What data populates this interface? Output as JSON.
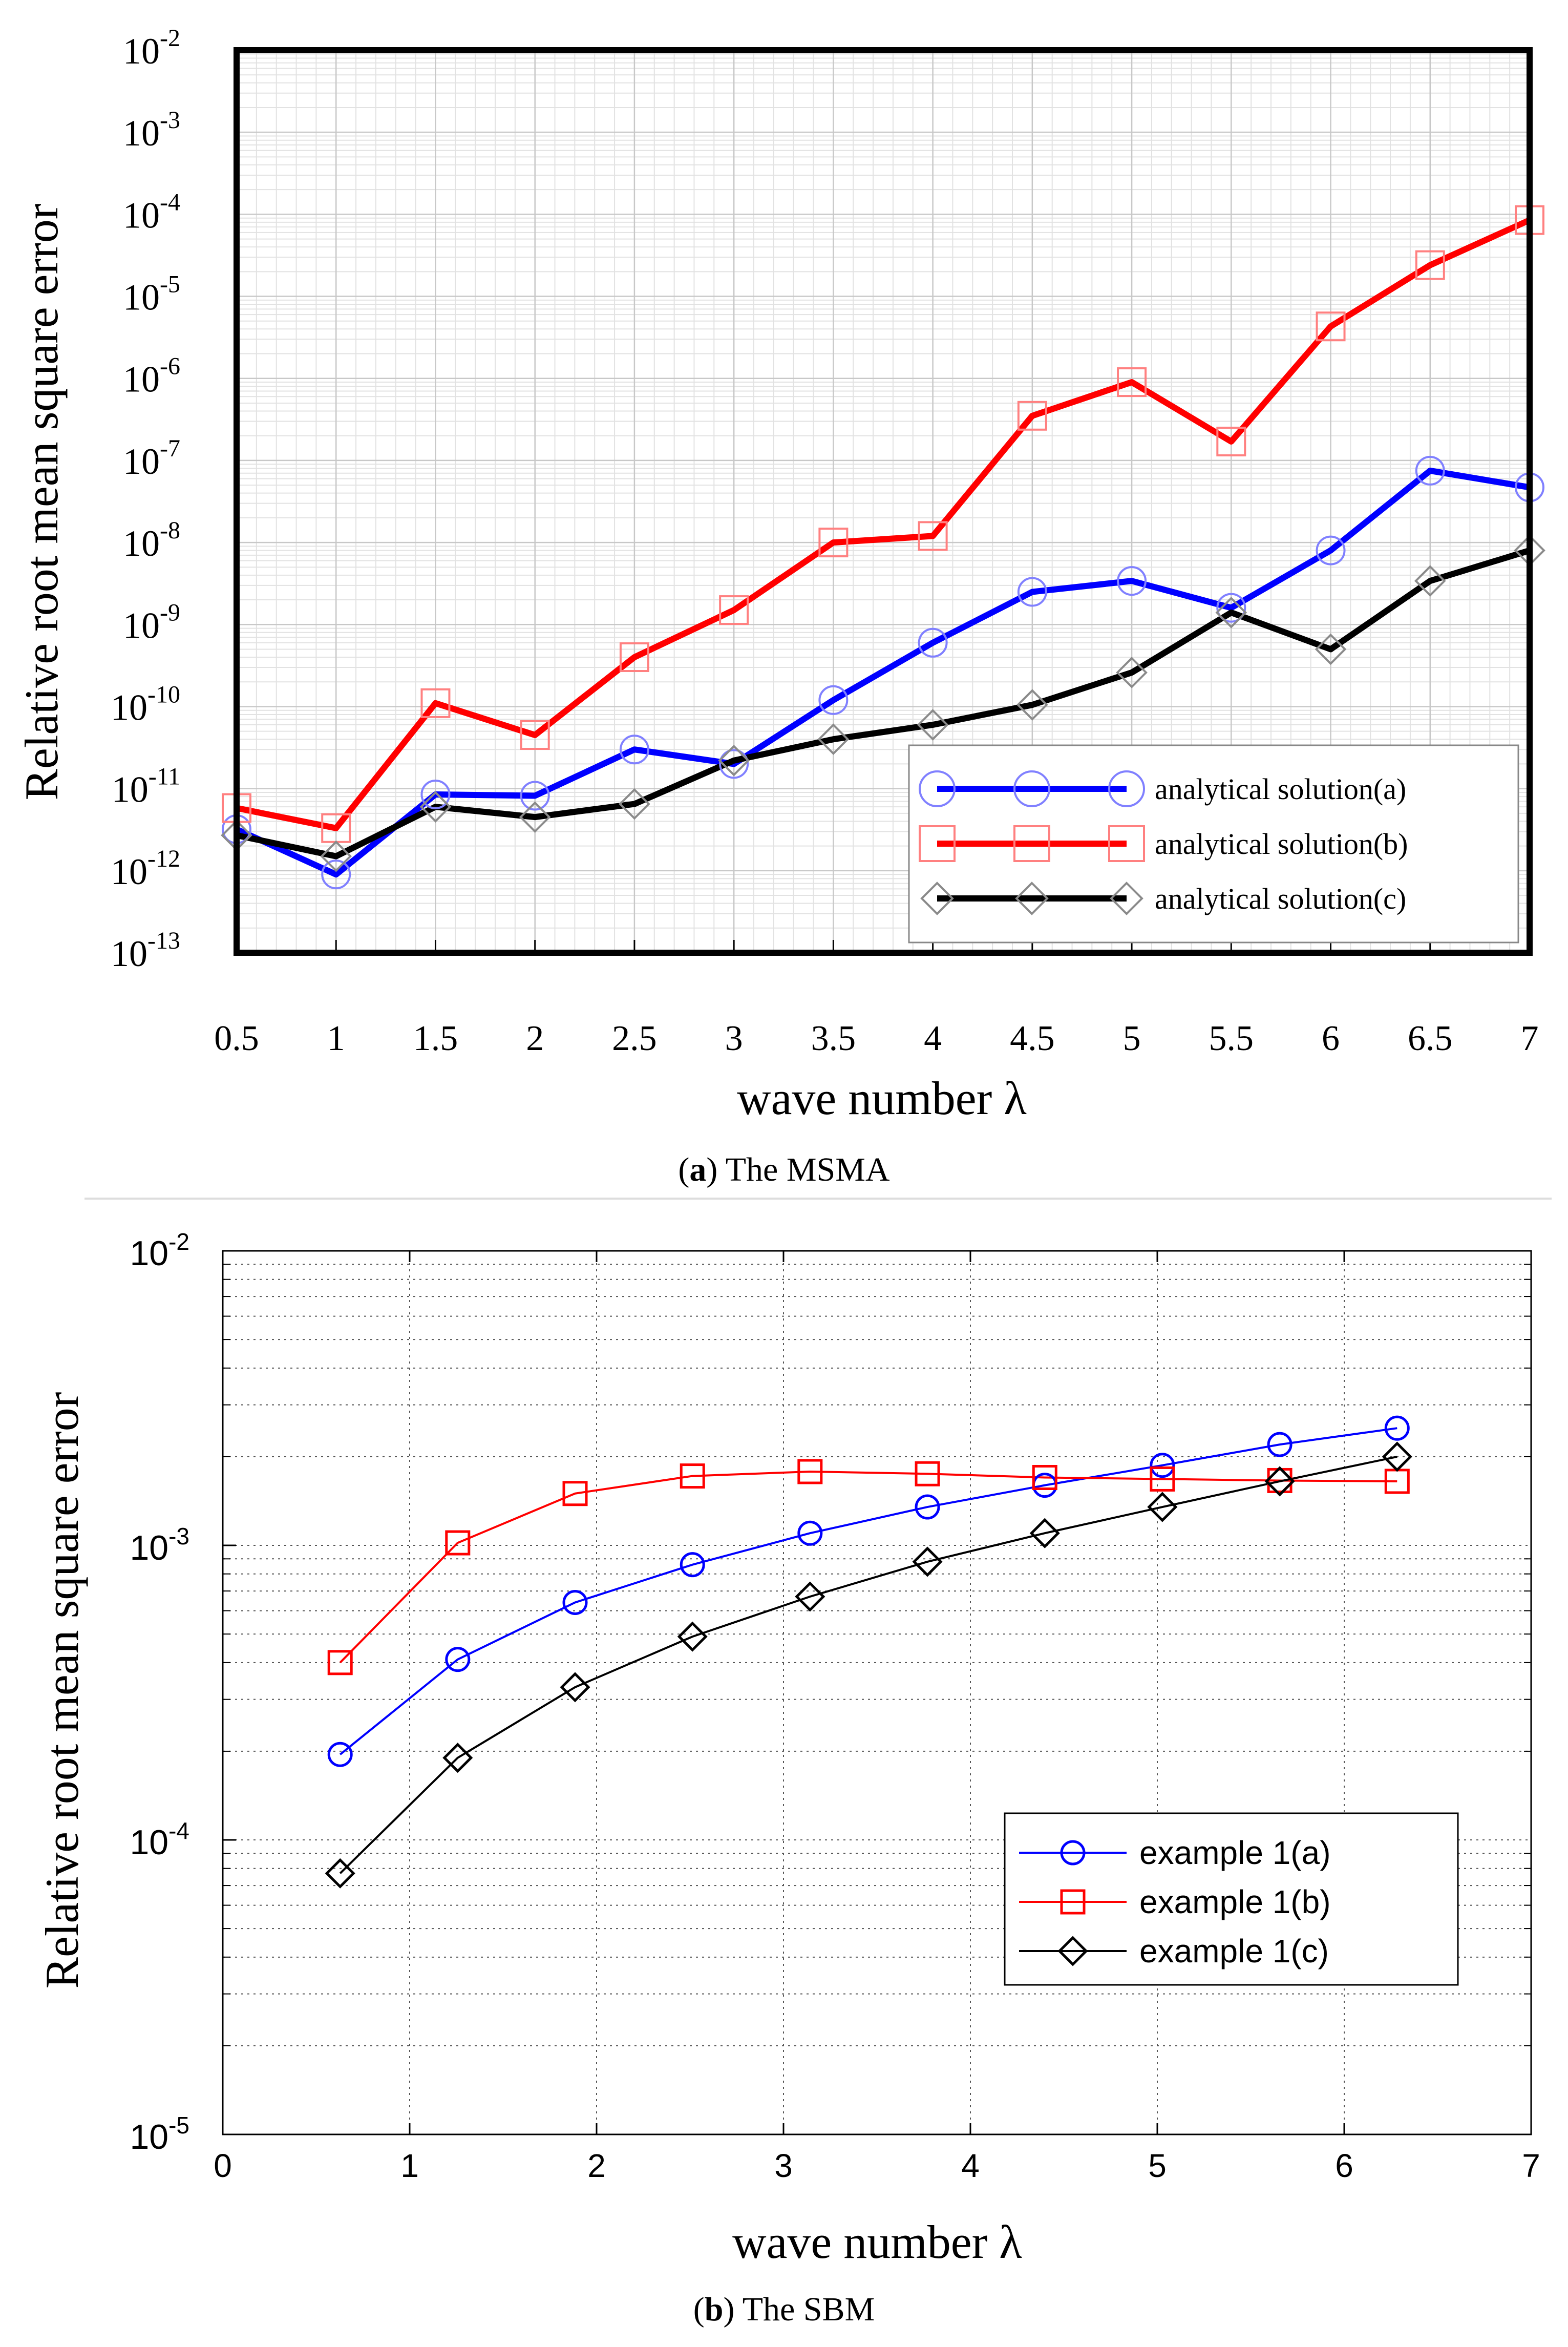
{
  "chart_data": [
    {
      "type": "line",
      "caption_label": "a",
      "caption_text": "The MSMA",
      "xlabel": "wave number λ",
      "ylabel": "Relative root mean square error",
      "yscale": "log",
      "xlim": [
        0.5,
        7
      ],
      "ylim": [
        1e-13,
        0.01
      ],
      "grid": true,
      "legend_position": "bottom-right",
      "x_ticks": [
        "0.5",
        "1",
        "1.5",
        "2",
        "2.5",
        "3",
        "3.5",
        "4",
        "4.5",
        "5",
        "5.5",
        "6",
        "6.5",
        "7"
      ],
      "y_ticks": [
        {
          "base": "10",
          "exp": "-2",
          "value": 0.01
        },
        {
          "base": "10",
          "exp": "-3",
          "value": 0.001
        },
        {
          "base": "10",
          "exp": "-4",
          "value": 0.0001
        },
        {
          "base": "10",
          "exp": "-5",
          "value": 1e-05
        },
        {
          "base": "10",
          "exp": "-6",
          "value": 1e-06
        },
        {
          "base": "10",
          "exp": "-7",
          "value": 1e-07
        },
        {
          "base": "10",
          "exp": "-8",
          "value": 1e-08
        },
        {
          "base": "10",
          "exp": "-9",
          "value": 1e-09
        },
        {
          "base": "10",
          "exp": "-10",
          "value": 1e-10
        },
        {
          "base": "10",
          "exp": "-11",
          "value": 1e-11
        },
        {
          "base": "10",
          "exp": "-12",
          "value": 1e-12
        },
        {
          "base": "10",
          "exp": "-13",
          "value": 1e-13
        }
      ],
      "x": [
        0.5,
        1,
        1.5,
        2,
        2.5,
        3,
        3.5,
        4,
        4.5,
        5,
        5.5,
        6,
        6.5,
        7
      ],
      "series": [
        {
          "name": "analytical solution(a)",
          "color": "#0000ff",
          "marker": "circle",
          "values": [
            3.2e-12,
            9e-13,
            8.5e-12,
            8.2e-12,
            3e-11,
            2e-11,
            1.2e-10,
            6e-10,
            2.5e-09,
            3.4e-09,
            1.6e-09,
            8e-09,
            7.5e-08,
            4.7e-08
          ]
        },
        {
          "name": "analytical solution(b)",
          "color": "#ff0000",
          "marker": "square",
          "values": [
            5.8e-12,
            3.3e-12,
            1.1e-10,
            4.5e-11,
            4e-10,
            1.5e-09,
            1e-08,
            1.2e-08,
            3.5e-07,
            9e-07,
            1.7e-07,
            4.3e-06,
            2.4e-05,
            8.5e-05
          ]
        },
        {
          "name": "analytical solution(c)",
          "color": "#000000",
          "marker": "diamond",
          "values": [
            2.7e-12,
            1.5e-12,
            6e-12,
            4.5e-12,
            6.5e-12,
            2.2e-11,
            4e-11,
            6e-11,
            1.05e-10,
            2.6e-10,
            1.4e-09,
            5e-10,
            3.4e-09,
            8e-09
          ]
        }
      ]
    },
    {
      "type": "line",
      "caption_label": "b",
      "caption_text": "The SBM",
      "xlabel": "wave number λ",
      "ylabel": "Relative root mean square error",
      "yscale": "log",
      "xlim": [
        0,
        7
      ],
      "ylim": [
        1e-05,
        0.01
      ],
      "grid": true,
      "legend_position": "bottom-right",
      "x_ticks": [
        "0",
        "1",
        "2",
        "3",
        "4",
        "5",
        "6",
        "7"
      ],
      "y_ticks": [
        {
          "base": "10",
          "exp": "-2",
          "value": 0.01
        },
        {
          "base": "10",
          "exp": "-3",
          "value": 0.001
        },
        {
          "base": "10",
          "exp": "-4",
          "value": 0.0001
        },
        {
          "base": "10",
          "exp": "-5",
          "value": 1e-05
        }
      ],
      "x": [
        0.628,
        1.257,
        1.885,
        2.513,
        3.142,
        3.77,
        4.398,
        5.027,
        5.655,
        6.283
      ],
      "series": [
        {
          "name": "example 1(a)",
          "color": "#0000ff",
          "marker": "circle",
          "values": [
            0.000195,
            0.00041,
            0.00064,
            0.00086,
            0.0011,
            0.00135,
            0.0016,
            0.00187,
            0.0022,
            0.0025
          ]
        },
        {
          "name": "example 1(b)",
          "color": "#ff0000",
          "marker": "square",
          "values": [
            0.0004,
            0.00102,
            0.0015,
            0.00172,
            0.00178,
            0.00175,
            0.0017,
            0.00168,
            0.00166,
            0.00165
          ]
        },
        {
          "name": "example 1(c)",
          "color": "#000000",
          "marker": "diamond",
          "values": [
            7.7e-05,
            0.00019,
            0.00033,
            0.00049,
            0.00067,
            0.00088,
            0.0011,
            0.00135,
            0.00165,
            0.002
          ]
        }
      ]
    }
  ]
}
